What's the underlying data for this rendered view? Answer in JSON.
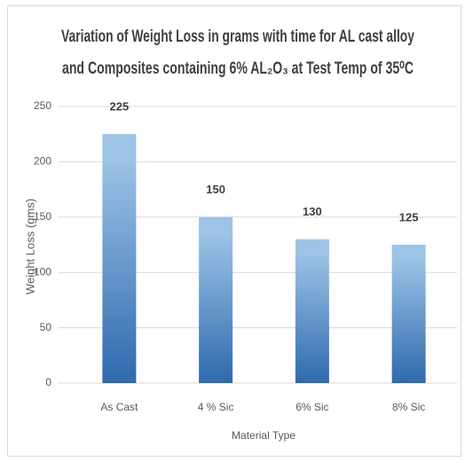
{
  "chart_data": {
    "type": "bar",
    "title": [
      "Variation of Weight Loss in grams with time for AL cast alloy",
      "and Composites containing 6% AL₂O₃ at Test Temp of 35⁰C"
    ],
    "categories": [
      "As Cast",
      "4 % Sic",
      "6% Sic",
      "8%  Sic"
    ],
    "values": [
      225,
      150,
      130,
      125
    ],
    "color": [
      "#9dc3e6",
      "#2e6aad"
    ],
    "ylim": [
      0,
      250
    ],
    "yticks": [
      0,
      50,
      100,
      150,
      200,
      250
    ],
    "grid": true,
    "x_label": "Material Type",
    "y_label": "Weight Loss (gms)"
  }
}
